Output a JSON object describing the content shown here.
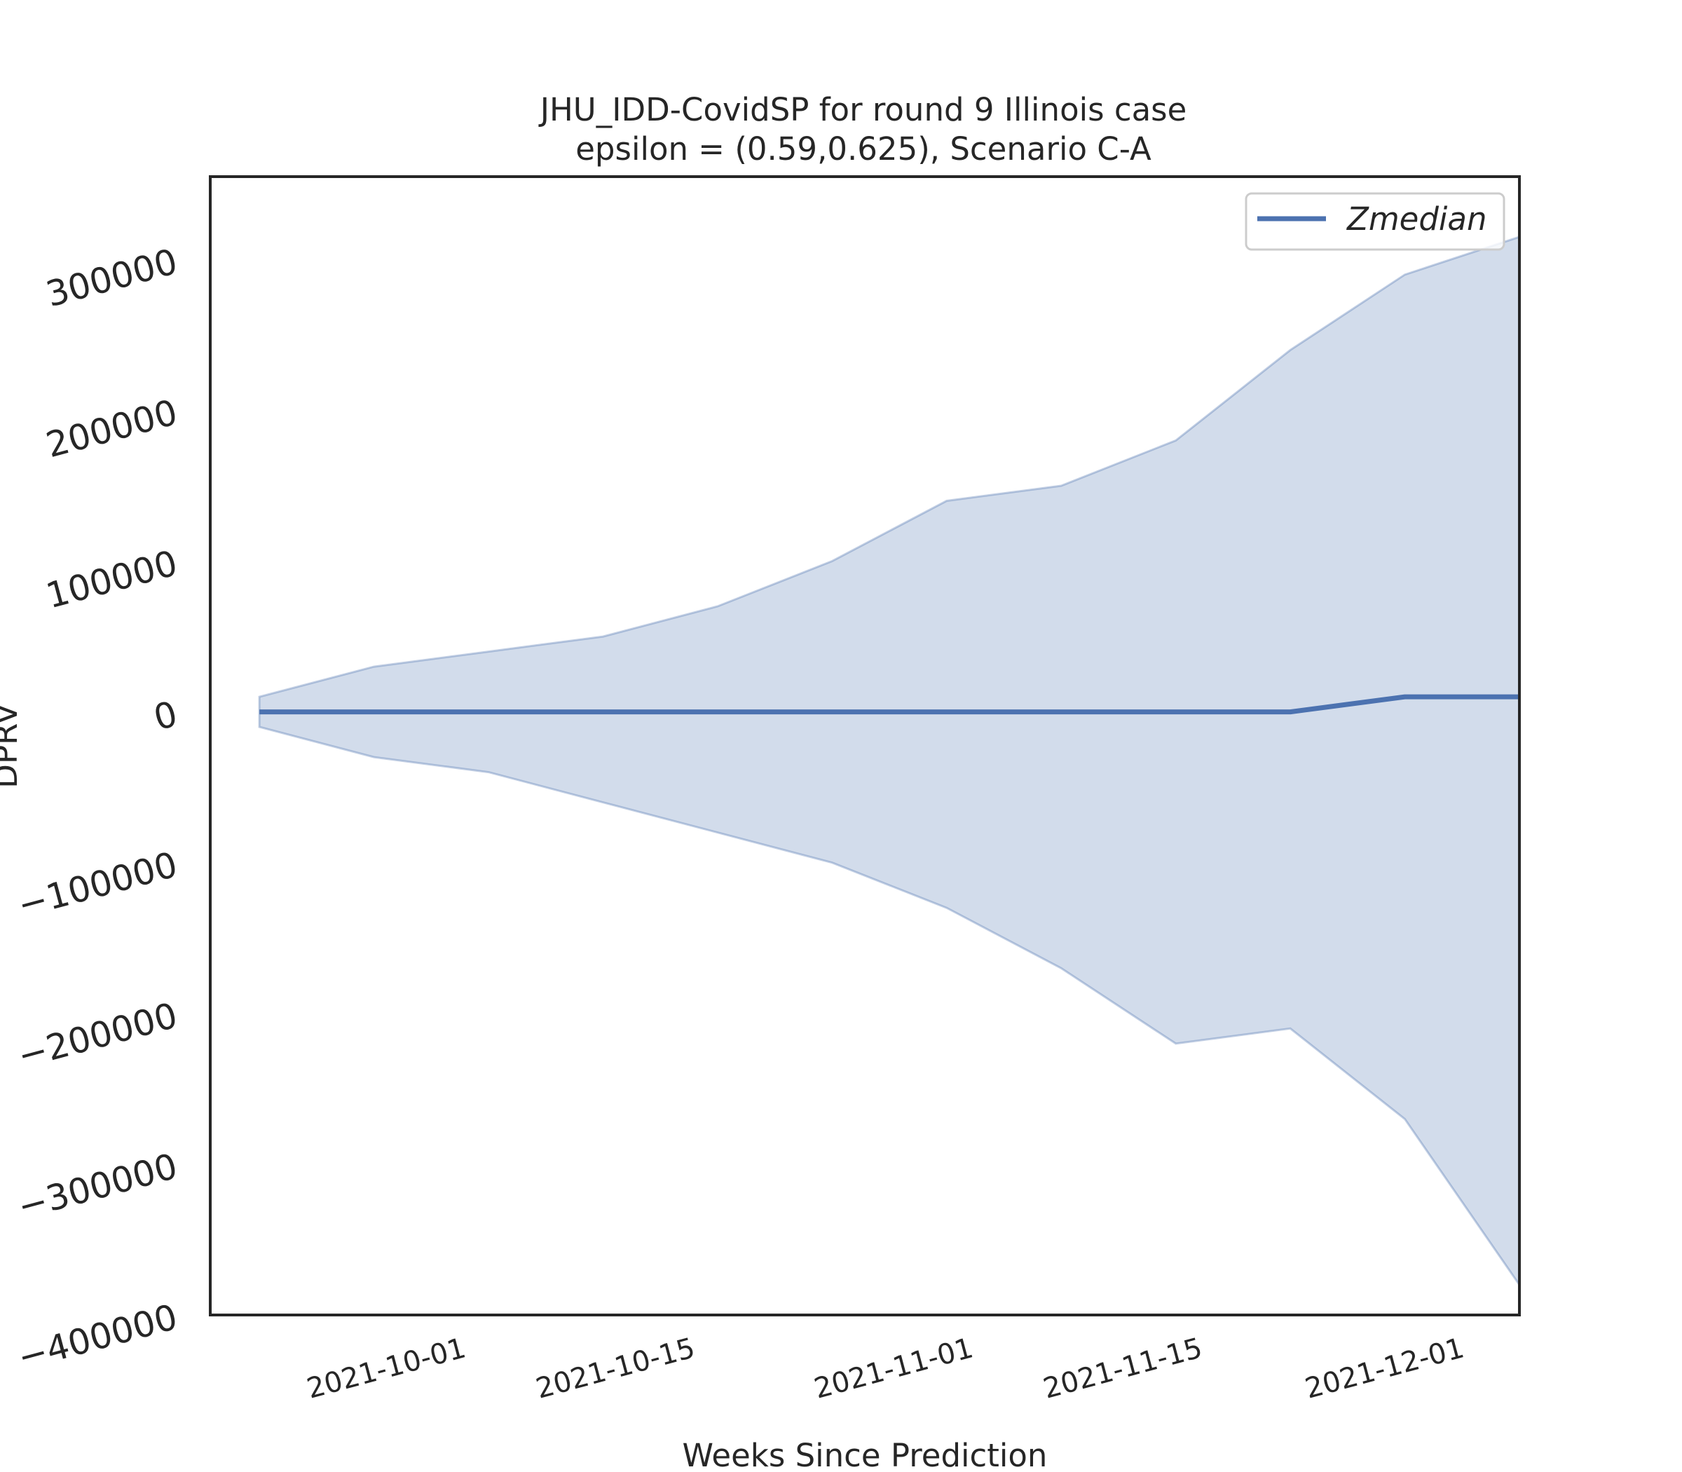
{
  "chart_data": {
    "type": "line",
    "title_line1": "JHU_IDD-CovidSP for round 9 Illinois  case",
    "title_line2": "epsilon = (0.59,0.625), Scenario C-A",
    "xlabel": "Weeks Since Prediction",
    "ylabel": "DPRV",
    "ylim": [
      -400000,
      355000
    ],
    "yticks": [
      300000,
      200000,
      100000,
      0,
      -100000,
      -200000,
      -300000,
      -400000
    ],
    "ytick_labels": [
      "300000",
      "200000",
      "100000",
      "0",
      "−100000",
      "−200000",
      "−300000",
      "−400000"
    ],
    "xlim": [
      "2021-09-17",
      "2021-12-06"
    ],
    "xticks": [
      "2021-10-01",
      "2021-10-15",
      "2021-11-01",
      "2021-11-15",
      "2021-12-01"
    ],
    "x": [
      "2021-09-20",
      "2021-09-27",
      "2021-10-04",
      "2021-10-11",
      "2021-10-18",
      "2021-10-25",
      "2021-11-01",
      "2021-11-08",
      "2021-11-15",
      "2021-11-22",
      "2021-11-29",
      "2021-12-06"
    ],
    "series": [
      {
        "name": "Zmedian",
        "color": "#4c72b0",
        "values": [
          0,
          0,
          0,
          0,
          0,
          0,
          0,
          0,
          0,
          0,
          10000,
          10000
        ]
      }
    ],
    "band": {
      "color": "#4c72b0",
      "opacity": 0.25,
      "upper": [
        10000,
        30000,
        40000,
        50000,
        70000,
        100000,
        140000,
        150000,
        180000,
        240000,
        290000,
        315000
      ],
      "lower": [
        -10000,
        -30000,
        -40000,
        -60000,
        -80000,
        -100000,
        -130000,
        -170000,
        -220000,
        -210000,
        -270000,
        -380000
      ]
    },
    "legend_position": "upper right",
    "grid": false
  }
}
